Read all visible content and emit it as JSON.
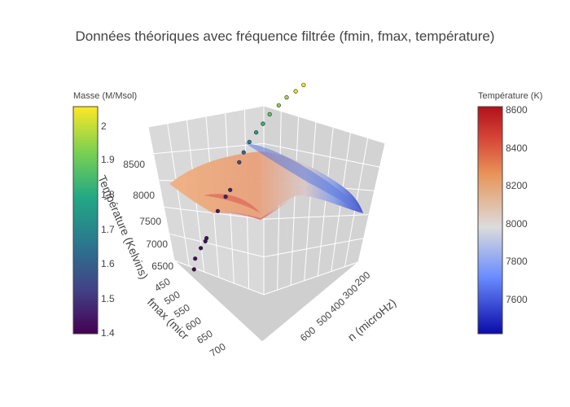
{
  "chart_data": {
    "type": "surface3d",
    "title": "Données théoriques avec fréquence filtrée (fmin, fmax, température)",
    "axes": {
      "x": {
        "label": "fmin (microHz)",
        "visible_label": "n (microHz)",
        "ticks": [
          "200",
          "300",
          "400",
          "500",
          "600"
        ]
      },
      "y": {
        "label": "fmax (microHz)",
        "visible_label": "fmax (micr",
        "ticks": [
          "450",
          "500",
          "550",
          "600",
          "650",
          "700"
        ]
      },
      "z": {
        "label": "Température (Kelvins)",
        "ticks": [
          "6500",
          "7000",
          "7500",
          "8000",
          "8500"
        ]
      }
    },
    "colorbars": [
      {
        "title": "Masse (M/Msol)",
        "ticks": [
          "1.4",
          "1.5",
          "1.6",
          "1.7",
          "1.8",
          "1.9",
          "2"
        ],
        "range": [
          1.4,
          2.05
        ],
        "colorscale": "viridis"
      },
      {
        "title": "Température (K)",
        "ticks": [
          "7600",
          "7800",
          "8000",
          "8200",
          "8400",
          "8600"
        ],
        "range": [
          7450,
          8600
        ],
        "colorscale": "rdbu_reversed"
      }
    ],
    "surface_temperature_range": [
      7450,
      8550
    ],
    "scatter_points": [
      {
        "fmin": 230,
        "fmax": 700,
        "T": 6380,
        "mass": 1.41
      },
      {
        "fmin": 225,
        "fmax": 690,
        "T": 6540,
        "mass": 1.42
      },
      {
        "fmin": 240,
        "fmax": 680,
        "T": 6660,
        "mass": 1.42
      },
      {
        "fmin": 250,
        "fmax": 670,
        "T": 6740,
        "mass": 1.43
      },
      {
        "fmin": 245,
        "fmax": 660,
        "T": 6800,
        "mass": 1.43
      },
      {
        "fmin": 275,
        "fmax": 640,
        "T": 7120,
        "mass": 1.45
      },
      {
        "fmin": 290,
        "fmax": 620,
        "T": 7300,
        "mass": 1.46
      },
      {
        "fmin": 300,
        "fmax": 610,
        "T": 7380,
        "mass": 1.47
      },
      {
        "fmin": 330,
        "fmax": 600,
        "T": 7700,
        "mass": 1.55
      },
      {
        "fmin": 340,
        "fmax": 590,
        "T": 7820,
        "mass": 1.62
      },
      {
        "fmin": 355,
        "fmax": 580,
        "T": 7940,
        "mass": 1.7
      },
      {
        "fmin": 370,
        "fmax": 565,
        "T": 8050,
        "mass": 1.76
      },
      {
        "fmin": 385,
        "fmax": 550,
        "T": 8150,
        "mass": 1.82
      },
      {
        "fmin": 400,
        "fmax": 535,
        "T": 8260,
        "mass": 1.88
      },
      {
        "fmin": 420,
        "fmax": 515,
        "T": 8360,
        "mass": 1.93
      },
      {
        "fmin": 440,
        "fmax": 500,
        "T": 8440,
        "mass": 1.97
      },
      {
        "fmin": 460,
        "fmax": 480,
        "T": 8500,
        "mass": 2.02
      },
      {
        "fmin": 480,
        "fmax": 465,
        "T": 8560,
        "mass": 2.04
      }
    ]
  }
}
